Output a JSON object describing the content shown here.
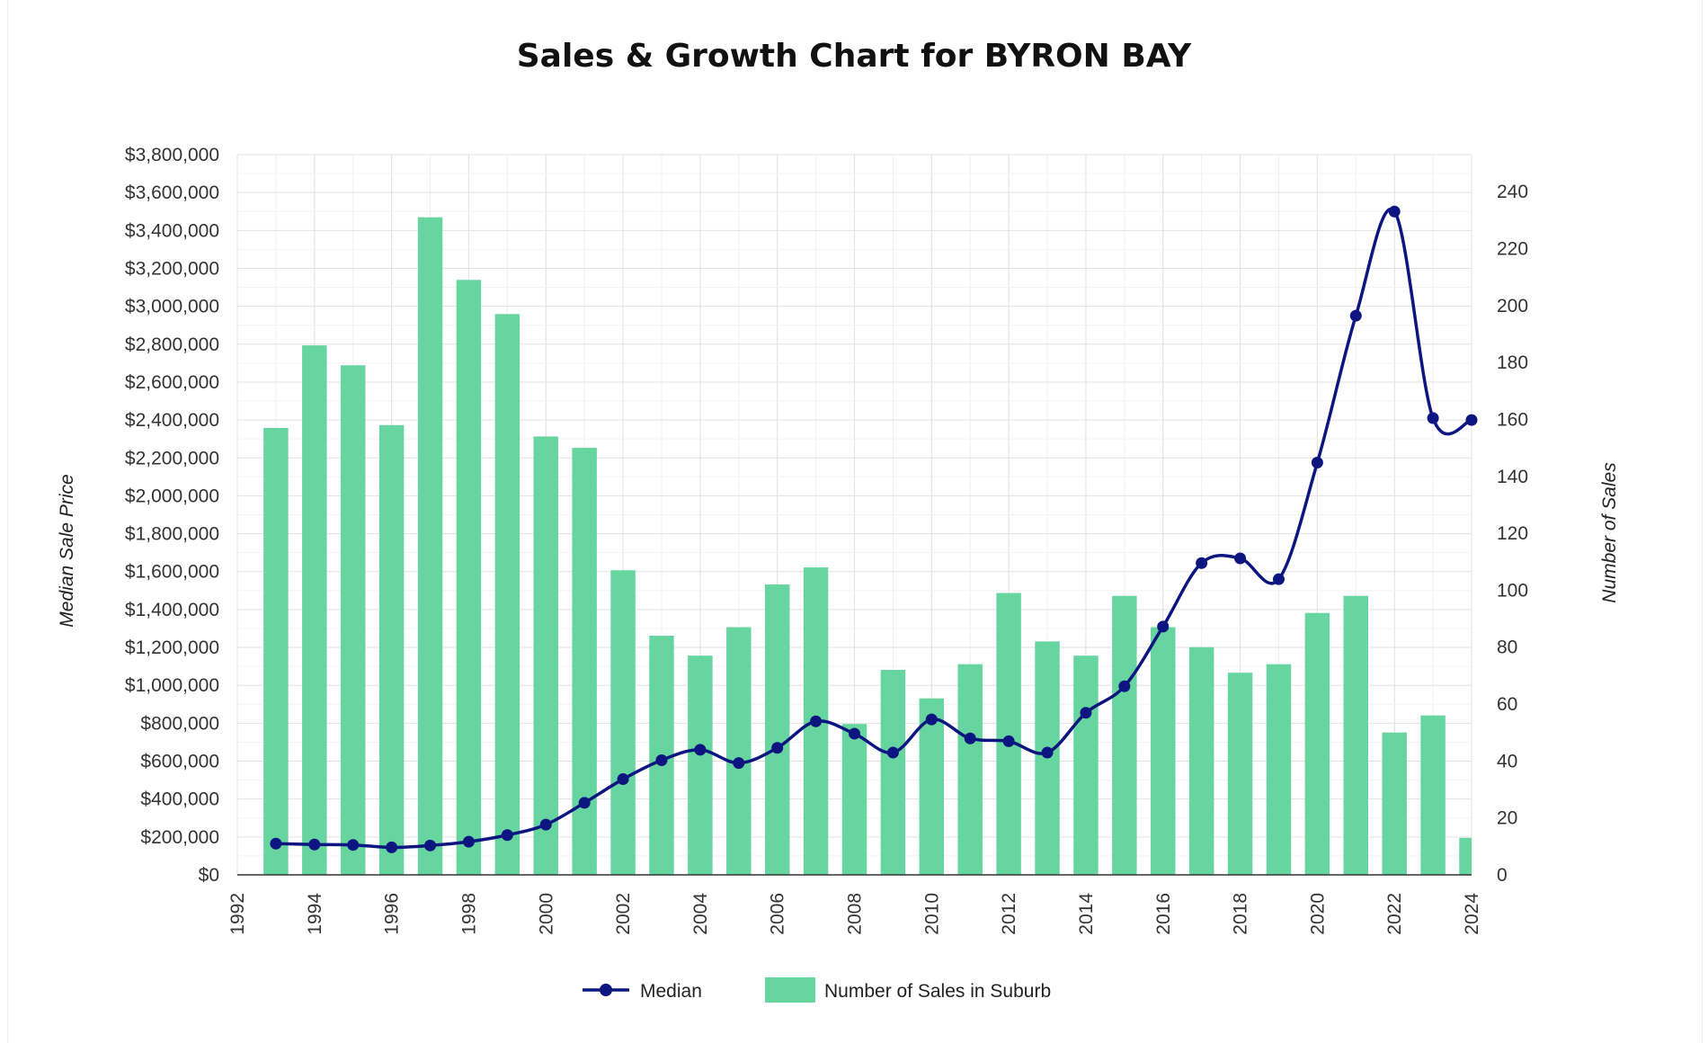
{
  "chart_data": {
    "type": "bar+line",
    "title": "Sales & Growth Chart for BYRON BAY",
    "x_ticks": [
      1992,
      1994,
      1996,
      1998,
      2000,
      2002,
      2004,
      2006,
      2008,
      2010,
      2012,
      2014,
      2016,
      2018,
      2020,
      2022,
      2024
    ],
    "xlim": [
      1992,
      2024
    ],
    "y_left": {
      "label": "Median Sale Price",
      "ticks": [
        "$0",
        "$200,000",
        "$400,000",
        "$600,000",
        "$800,000",
        "$1,000,000",
        "$1,200,000",
        "$1,400,000",
        "$1,600,000",
        "$1,800,000",
        "$2,000,000",
        "$2,200,000",
        "$2,400,000",
        "$2,600,000",
        "$2,800,000",
        "$3,000,000",
        "$3,200,000",
        "$3,400,000",
        "$3,600,000",
        "$3,800,000"
      ],
      "range": [
        0,
        3800000
      ]
    },
    "y_right": {
      "label": "Number of Sales",
      "ticks": [
        "0",
        "20",
        "40",
        "60",
        "80",
        "100",
        "120",
        "140",
        "160",
        "180",
        "200",
        "220",
        "240"
      ],
      "range": [
        0,
        253
      ]
    },
    "grid": true,
    "legend_position": "bottom",
    "series": [
      {
        "name": "Median",
        "kind": "line",
        "axis": "left",
        "color": "#0d1680",
        "x": [
          1993,
          1994,
          1995,
          1996,
          1997,
          1998,
          1999,
          2000,
          2001,
          2002,
          2003,
          2004,
          2005,
          2006,
          2007,
          2008,
          2009,
          2010,
          2011,
          2012,
          2013,
          2014,
          2015,
          2016,
          2017,
          2018,
          2019,
          2020,
          2021,
          2022,
          2023,
          2024
        ],
        "values": [
          165000,
          160000,
          158000,
          145000,
          155000,
          175000,
          210000,
          265000,
          380000,
          505000,
          605000,
          660000,
          590000,
          670000,
          810000,
          745000,
          645000,
          820000,
          720000,
          705000,
          645000,
          855000,
          995000,
          1310000,
          1645000,
          1670000,
          1560000,
          2175000,
          2950000,
          3500000,
          2410000,
          2400000
        ]
      },
      {
        "name": "Number of Sales in Suburb",
        "kind": "bar",
        "axis": "right",
        "color": "#66d59f",
        "x": [
          1993,
          1994,
          1995,
          1996,
          1997,
          1998,
          1999,
          2000,
          2001,
          2002,
          2003,
          2004,
          2005,
          2006,
          2007,
          2008,
          2009,
          2010,
          2011,
          2012,
          2013,
          2014,
          2015,
          2016,
          2017,
          2018,
          2019,
          2020,
          2021,
          2022,
          2023,
          2024
        ],
        "values": [
          157,
          186,
          179,
          158,
          231,
          209,
          197,
          154,
          150,
          107,
          84,
          77,
          87,
          102,
          108,
          53,
          72,
          62,
          74,
          99,
          82,
          77,
          98,
          87,
          80,
          71,
          74,
          92,
          98,
          50,
          56,
          13
        ]
      }
    ]
  }
}
